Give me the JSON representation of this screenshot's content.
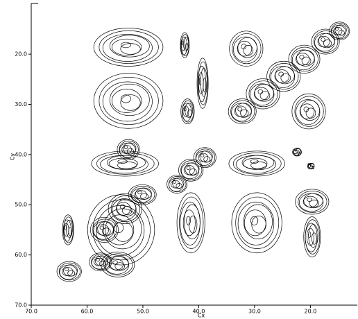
{
  "chart_data": {
    "type": "contour",
    "xlabel": "Cx",
    "ylabel": "Cy",
    "xlim": [
      70,
      11.6
    ],
    "ylim": [
      70,
      9.9
    ],
    "xticks": [
      {
        "value": 70,
        "label": "70.0"
      },
      {
        "value": 60,
        "label": "60.0"
      },
      {
        "value": 50,
        "label": "50.0"
      },
      {
        "value": 40,
        "label": "40.0"
      },
      {
        "value": 30,
        "label": "30.0"
      },
      {
        "value": 20,
        "label": "20.0"
      }
    ],
    "yticks": [
      {
        "value": 20,
        "label": "20.0"
      },
      {
        "value": 30,
        "label": "30.0"
      },
      {
        "value": 40,
        "label": "40.0"
      },
      {
        "value": 50,
        "label": "50.0"
      },
      {
        "value": 60,
        "label": "60.0"
      },
      {
        "value": 70,
        "label": "70.0"
      }
    ],
    "color": "#000000",
    "peaks": [
      {
        "x": 52.6,
        "y": 18.6,
        "wx": 6.2,
        "wy": 3.8
      },
      {
        "x": 42.5,
        "y": 18.2,
        "wx": 0.8,
        "wy": 2.5
      },
      {
        "x": 39.3,
        "y": 25.8,
        "wx": 1.0,
        "wy": 5.0
      },
      {
        "x": 42.0,
        "y": 31.4,
        "wx": 1.2,
        "wy": 2.5
      },
      {
        "x": 52.6,
        "y": 29.3,
        "wx": 6.2,
        "wy": 5.5
      },
      {
        "x": 31.5,
        "y": 18.9,
        "wx": 3.0,
        "wy": 3.5
      },
      {
        "x": 32.2,
        "y": 31.4,
        "wx": 2.5,
        "wy": 2.5
      },
      {
        "x": 28.5,
        "y": 27.9,
        "wx": 3.0,
        "wy": 3.0
      },
      {
        "x": 24.8,
        "y": 24.4,
        "wx": 3.0,
        "wy": 3.0
      },
      {
        "x": 21.1,
        "y": 21.0,
        "wx": 2.8,
        "wy": 2.8
      },
      {
        "x": 17.3,
        "y": 17.5,
        "wx": 2.5,
        "wy": 2.5
      },
      {
        "x": 14.8,
        "y": 15.4,
        "wx": 1.8,
        "wy": 1.8
      },
      {
        "x": 20.3,
        "y": 31.4,
        "wx": 3.0,
        "wy": 3.5
      },
      {
        "x": 53.2,
        "y": 41.8,
        "wx": 6.0,
        "wy": 2.5
      },
      {
        "x": 52.6,
        "y": 39.0,
        "wx": 2.0,
        "wy": 2.0
      },
      {
        "x": 43.9,
        "y": 45.9,
        "wx": 1.8,
        "wy": 1.8
      },
      {
        "x": 41.4,
        "y": 43.1,
        "wx": 2.2,
        "wy": 2.2
      },
      {
        "x": 38.9,
        "y": 40.6,
        "wx": 2.0,
        "wy": 2.0
      },
      {
        "x": 29.6,
        "y": 41.8,
        "wx": 5.0,
        "wy": 2.5
      },
      {
        "x": 22.4,
        "y": 39.5,
        "wx": 0.8,
        "wy": 0.8
      },
      {
        "x": 19.9,
        "y": 42.3,
        "wx": 0.6,
        "wy": 0.6
      },
      {
        "x": 56.9,
        "y": 55.0,
        "wx": 2.5,
        "wy": 2.5
      },
      {
        "x": 53.2,
        "y": 50.8,
        "wx": 3.0,
        "wy": 3.0
      },
      {
        "x": 50.1,
        "y": 48.0,
        "wx": 2.5,
        "wy": 2.0
      },
      {
        "x": 53.9,
        "y": 55.0,
        "wx": 6.0,
        "wy": 7.0
      },
      {
        "x": 57.6,
        "y": 61.4,
        "wx": 2.0,
        "wy": 1.8
      },
      {
        "x": 63.4,
        "y": 55.0,
        "wx": 1.0,
        "wy": 3.0
      },
      {
        "x": 63.2,
        "y": 63.3,
        "wx": 2.2,
        "wy": 2.0
      },
      {
        "x": 54.5,
        "y": 61.9,
        "wx": 3.0,
        "wy": 2.5
      },
      {
        "x": 41.4,
        "y": 53.6,
        "wx": 2.5,
        "wy": 6.0
      },
      {
        "x": 29.6,
        "y": 53.6,
        "wx": 4.5,
        "wy": 6.0
      },
      {
        "x": 19.7,
        "y": 49.4,
        "wx": 3.0,
        "wy": 2.5
      },
      {
        "x": 19.7,
        "y": 56.4,
        "wx": 1.5,
        "wy": 4.0
      }
    ]
  }
}
